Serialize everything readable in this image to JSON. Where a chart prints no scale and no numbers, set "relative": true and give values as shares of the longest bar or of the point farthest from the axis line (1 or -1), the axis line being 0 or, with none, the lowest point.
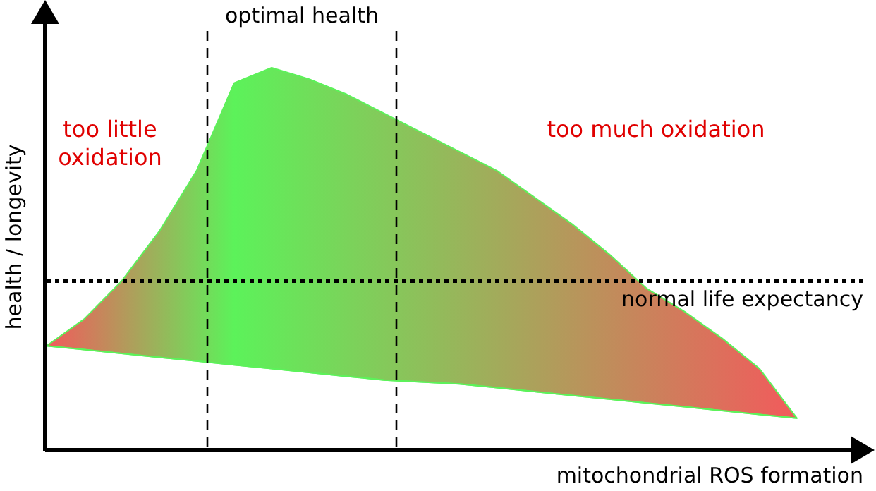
{
  "chart_data": {
    "type": "area",
    "relative": true,
    "xlabel": "mitochondrial ROS formation",
    "ylabel": "health / longevity",
    "categories": [
      null,
      null,
      null,
      null,
      null,
      null,
      null,
      null,
      null,
      null,
      null,
      null,
      null,
      null,
      null,
      null,
      null,
      null,
      null,
      null,
      null
    ],
    "series": [
      {
        "type": "line",
        "color": "#5cf25a",
        "values": [
          0.27,
          0.26,
          0.25,
          0.24,
          0.23,
          0.22,
          0.21,
          0.2,
          0.19,
          0.18,
          0.175,
          0.17,
          0.16,
          0.15,
          0.14,
          0.13,
          0.12,
          0.11,
          0.1,
          0.09,
          0.08
        ]
      },
      {
        "color": "#5cf25a",
        "values": [
          0.27,
          0.34,
          0.44,
          0.57,
          0.73,
          0.96,
          1.0,
          0.97,
          0.93,
          0.88,
          0.83,
          0.78,
          0.73,
          0.66,
          0.59,
          0.51,
          0.42,
          0.36,
          0.29,
          0.21,
          0.08
        ]
      }
    ],
    "ref_lines": [
      {
        "axis": "y",
        "value": 0.44,
        "label": "normal life expectancy",
        "line_style": "dotted"
      }
    ],
    "annotations": [
      "too little\noxidation",
      "too much oxidation",
      "optimal health"
    ]
  }
}
